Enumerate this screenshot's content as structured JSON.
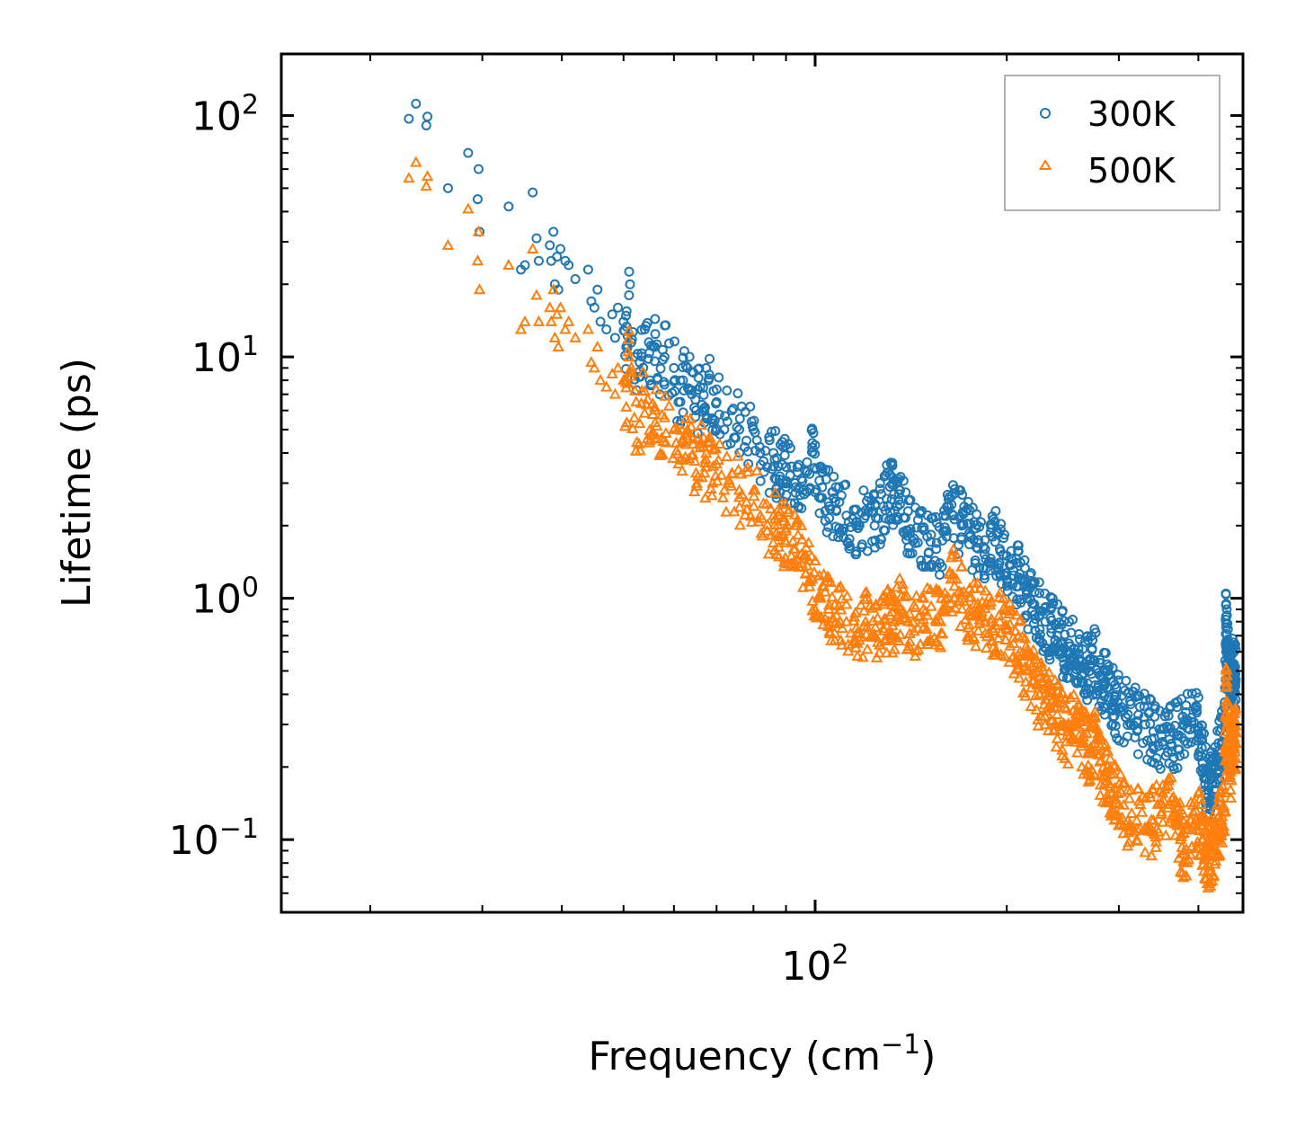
{
  "chart_data": {
    "type": "scatter",
    "xscale": "log",
    "yscale": "log",
    "xlim": [
      14.5,
      470
    ],
    "ylim": [
      0.05,
      180
    ],
    "xlabel": "Frequency (cm",
    "xlabel_sup": "−1",
    "xlabel_end": ")",
    "ylabel": "Lifetime (ps)",
    "x_ticks": [
      {
        "value": 100,
        "base": "10",
        "exp": "2"
      }
    ],
    "y_ticks": [
      {
        "value": 0.1,
        "base": "10",
        "exp": "−1"
      },
      {
        "value": 1,
        "base": "10",
        "exp": "0"
      },
      {
        "value": 10,
        "base": "10",
        "exp": "1"
      },
      {
        "value": 100,
        "base": "10",
        "exp": "2"
      }
    ],
    "legend_position": "top-right",
    "series": [
      {
        "name": "300K",
        "marker": "circle",
        "color": "#1f77b4",
        "points": [
          [
            23,
            97
          ],
          [
            23.6,
            112
          ],
          [
            24.5,
            91
          ],
          [
            24.6,
            99
          ],
          [
            26.5,
            50
          ],
          [
            28.5,
            70
          ],
          [
            29.5,
            45
          ],
          [
            29.6,
            60
          ],
          [
            29.7,
            33
          ],
          [
            33,
            42
          ],
          [
            34.5,
            23
          ],
          [
            35,
            24
          ],
          [
            36,
            48
          ],
          [
            36.5,
            31
          ],
          [
            36.8,
            25
          ],
          [
            38.3,
            29
          ],
          [
            38.5,
            25
          ],
          [
            38.8,
            33
          ],
          [
            39,
            20
          ],
          [
            39.3,
            26
          ],
          [
            39.5,
            19
          ],
          [
            39.8,
            28
          ],
          [
            40.5,
            25
          ],
          [
            41,
            24
          ],
          [
            42,
            21
          ],
          [
            44,
            23
          ],
          [
            44.5,
            17
          ],
          [
            45,
            16
          ],
          [
            45.5,
            19
          ],
          [
            46,
            14
          ],
          [
            47,
            13
          ],
          [
            48,
            15
          ],
          [
            48.5,
            12
          ],
          [
            49,
            16
          ],
          [
            50,
            14
          ],
          [
            50.5,
            11
          ],
          [
            51,
            18
          ],
          [
            52,
            10
          ],
          [
            53,
            9.5
          ],
          [
            54,
            13
          ],
          [
            55,
            8
          ],
          [
            56,
            11
          ],
          [
            57,
            7
          ],
          [
            58,
            10
          ],
          [
            60,
            9
          ],
          [
            61,
            6.5
          ],
          [
            62,
            8
          ],
          [
            63,
            9
          ],
          [
            64,
            7
          ],
          [
            65,
            6
          ],
          [
            66,
            7.5
          ],
          [
            67,
            6
          ],
          [
            68,
            8
          ],
          [
            69,
            5.5
          ],
          [
            70,
            6.5
          ],
          [
            72,
            5
          ],
          [
            74,
            6
          ],
          [
            76,
            5
          ],
          [
            78,
            4.5
          ],
          [
            80,
            5
          ],
          [
            82,
            4
          ],
          [
            84,
            3.5
          ],
          [
            86,
            4
          ],
          [
            88,
            3.2
          ],
          [
            90,
            3.5
          ],
          [
            93,
            3
          ],
          [
            96,
            2.8
          ],
          [
            99,
            4.4
          ],
          [
            102,
            2.6
          ],
          [
            105,
            2.5
          ],
          [
            108,
            2.3
          ],
          [
            112,
            2.2
          ],
          [
            116,
            2
          ],
          [
            120,
            2.2
          ],
          [
            124,
            2
          ],
          [
            128,
            2.4
          ],
          [
            131,
            2.9
          ],
          [
            133,
            2.7
          ],
          [
            136,
            2.8
          ],
          [
            140,
            1.9
          ],
          [
            145,
            1.7
          ],
          [
            150,
            1.8
          ],
          [
            155,
            1.6
          ],
          [
            160,
            1.9
          ],
          [
            165,
            2.2
          ],
          [
            170,
            2
          ],
          [
            175,
            1.8
          ],
          [
            180,
            1.7
          ],
          [
            185,
            1.6
          ],
          [
            190,
            1.8
          ],
          [
            195,
            1.6
          ],
          [
            200,
            1.5
          ],
          [
            205,
            1.3
          ],
          [
            210,
            1.2
          ],
          [
            215,
            1.0
          ],
          [
            220,
            0.95
          ],
          [
            225,
            0.85
          ],
          [
            230,
            0.8
          ],
          [
            235,
            0.75
          ],
          [
            240,
            0.7
          ],
          [
            245,
            0.65
          ],
          [
            250,
            0.6
          ],
          [
            255,
            0.62
          ],
          [
            260,
            0.55
          ],
          [
            265,
            0.52
          ],
          [
            270,
            0.5
          ],
          [
            275,
            0.55
          ],
          [
            280,
            0.48
          ],
          [
            285,
            0.45
          ],
          [
            290,
            0.42
          ],
          [
            295,
            0.38
          ],
          [
            300,
            0.35
          ],
          [
            310,
            0.33
          ],
          [
            320,
            0.31
          ],
          [
            330,
            0.3
          ],
          [
            340,
            0.28
          ],
          [
            350,
            0.27
          ],
          [
            360,
            0.26
          ],
          [
            370,
            0.27
          ],
          [
            380,
            0.3
          ],
          [
            390,
            0.32
          ],
          [
            400,
            0.29
          ],
          [
            405,
            0.24
          ],
          [
            410,
            0.18
          ],
          [
            415,
            0.16
          ],
          [
            420,
            0.17
          ],
          [
            425,
            0.2
          ],
          [
            430,
            0.22
          ],
          [
            435,
            0.25
          ],
          [
            440,
            0.27
          ],
          [
            442,
            0.84
          ],
          [
            444,
            0.6
          ],
          [
            446,
            0.5
          ],
          [
            448,
            0.45
          ],
          [
            450,
            0.42
          ],
          [
            452,
            0.5
          ],
          [
            454,
            0.48
          ],
          [
            456,
            0.52
          ],
          [
            458,
            0.46
          ]
        ]
      },
      {
        "name": "500K",
        "marker": "triangle",
        "color": "#ff7f0e",
        "points": [
          [
            23,
            55
          ],
          [
            23.6,
            64
          ],
          [
            24.5,
            51
          ],
          [
            24.6,
            56
          ],
          [
            26.5,
            29
          ],
          [
            28.5,
            41
          ],
          [
            29.5,
            25
          ],
          [
            29.6,
            33
          ],
          [
            29.7,
            19
          ],
          [
            33,
            24
          ],
          [
            34.5,
            13
          ],
          [
            35,
            14
          ],
          [
            36,
            28
          ],
          [
            36.5,
            18
          ],
          [
            36.8,
            14
          ],
          [
            38.3,
            16
          ],
          [
            38.5,
            14
          ],
          [
            38.8,
            19
          ],
          [
            39,
            12
          ],
          [
            39.3,
            15
          ],
          [
            39.5,
            11
          ],
          [
            39.8,
            16
          ],
          [
            40.5,
            13
          ],
          [
            41,
            14
          ],
          [
            42,
            12
          ],
          [
            44,
            13
          ],
          [
            44.5,
            9.5
          ],
          [
            45,
            9
          ],
          [
            45.5,
            11
          ],
          [
            46,
            8
          ],
          [
            47,
            7.5
          ],
          [
            48,
            8.5
          ],
          [
            48.5,
            7
          ],
          [
            49,
            9
          ],
          [
            50,
            8
          ],
          [
            50.5,
            6.2
          ],
          [
            51,
            10
          ],
          [
            52,
            5.6
          ],
          [
            53,
            5.3
          ],
          [
            54,
            7.2
          ],
          [
            55,
            4.5
          ],
          [
            56,
            6.2
          ],
          [
            57,
            3.9
          ],
          [
            58,
            5.6
          ],
          [
            60,
            5
          ],
          [
            61,
            3.6
          ],
          [
            62,
            4.5
          ],
          [
            63,
            5
          ],
          [
            64,
            3.9
          ],
          [
            65,
            3.3
          ],
          [
            66,
            4.2
          ],
          [
            67,
            3.3
          ],
          [
            68,
            4.4
          ],
          [
            69,
            3
          ],
          [
            70,
            3.6
          ],
          [
            72,
            2.8
          ],
          [
            74,
            3.3
          ],
          [
            76,
            2.8
          ],
          [
            78,
            2.5
          ],
          [
            80,
            2.8
          ],
          [
            82,
            2.2
          ],
          [
            84,
            1.9
          ],
          [
            86,
            2.2
          ],
          [
            88,
            1.8
          ],
          [
            90,
            1.9
          ],
          [
            93,
            1.6
          ],
          [
            96,
            1.5
          ],
          [
            99,
            1.2
          ],
          [
            102,
            1.0
          ],
          [
            105,
            0.9
          ],
          [
            108,
            0.85
          ],
          [
            112,
            0.8
          ],
          [
            116,
            0.75
          ],
          [
            120,
            0.8
          ],
          [
            124,
            0.7
          ],
          [
            128,
            0.75
          ],
          [
            131,
            0.85
          ],
          [
            133,
            0.8
          ],
          [
            136,
            0.9
          ],
          [
            140,
            0.8
          ],
          [
            145,
            0.75
          ],
          [
            150,
            0.85
          ],
          [
            155,
            0.8
          ],
          [
            160,
            0.9
          ],
          [
            165,
            1.2
          ],
          [
            170,
            1.0
          ],
          [
            175,
            0.9
          ],
          [
            180,
            0.85
          ],
          [
            185,
            0.8
          ],
          [
            190,
            0.75
          ],
          [
            195,
            0.8
          ],
          [
            200,
            0.75
          ],
          [
            205,
            0.65
          ],
          [
            210,
            0.6
          ],
          [
            215,
            0.5
          ],
          [
            220,
            0.45
          ],
          [
            225,
            0.4
          ],
          [
            230,
            0.38
          ],
          [
            235,
            0.35
          ],
          [
            240,
            0.33
          ],
          [
            245,
            0.3
          ],
          [
            250,
            0.28
          ],
          [
            255,
            0.3
          ],
          [
            260,
            0.27
          ],
          [
            265,
            0.25
          ],
          [
            270,
            0.23
          ],
          [
            275,
            0.25
          ],
          [
            280,
            0.21
          ],
          [
            285,
            0.19
          ],
          [
            290,
            0.17
          ],
          [
            295,
            0.15
          ],
          [
            300,
            0.14
          ],
          [
            310,
            0.12
          ],
          [
            320,
            0.12
          ],
          [
            330,
            0.11
          ],
          [
            340,
            0.12
          ],
          [
            350,
            0.13
          ],
          [
            360,
            0.14
          ],
          [
            370,
            0.12
          ],
          [
            375,
            0.1
          ],
          [
            380,
            0.09
          ],
          [
            390,
            0.11
          ],
          [
            400,
            0.12
          ],
          [
            405,
            0.1
          ],
          [
            410,
            0.09
          ],
          [
            415,
            0.085
          ],
          [
            420,
            0.09
          ],
          [
            425,
            0.1
          ],
          [
            430,
            0.11
          ],
          [
            435,
            0.12
          ],
          [
            440,
            0.13
          ],
          [
            442,
            0.45
          ],
          [
            444,
            0.3
          ],
          [
            446,
            0.25
          ],
          [
            448,
            0.22
          ],
          [
            450,
            0.2
          ],
          [
            452,
            0.26
          ],
          [
            454,
            0.24
          ],
          [
            456,
            0.28
          ],
          [
            458,
            0.25
          ]
        ]
      }
    ]
  }
}
